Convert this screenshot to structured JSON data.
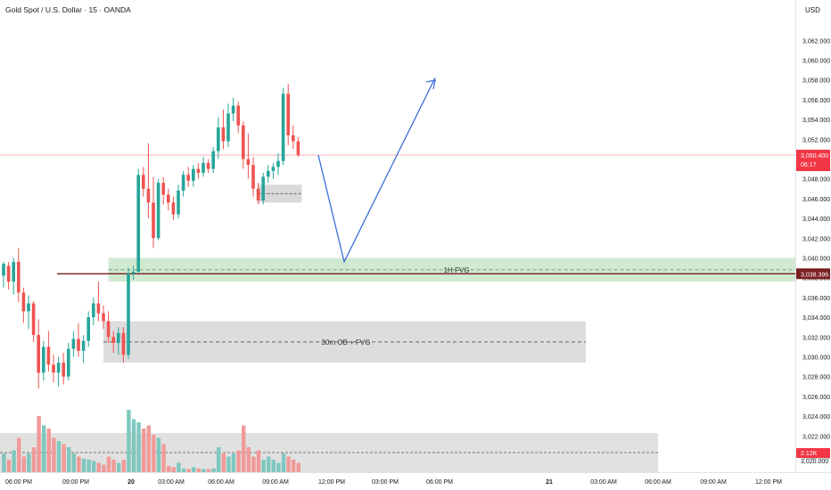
{
  "header": {
    "symbol_title": "Gold Spot / U.S. Dollar · 15 · OANDA",
    "currency": "USD"
  },
  "colors": {
    "up": "#26a69a",
    "down": "#ef5350",
    "vol_up": "#7fc7bf",
    "vol_down": "#f19a98",
    "fvg_zone": "#c8e6c9",
    "grey_zone": "#d9d9d9",
    "projection": "#3d6fd6",
    "price_tag": "#f23645",
    "level_tag": "#7a1f1f",
    "current_line": "#f7a8a8",
    "level_line": "#7a1f1f"
  },
  "price_axis": {
    "min": 3019.5,
    "max": 3065.0,
    "step": 2
  },
  "time_axis": {
    "labels": [
      "06:00 PM",
      "09:00 PM",
      "20",
      "03:00 AM",
      "06:00 AM",
      "09:00 AM",
      "12:00 PM",
      "03:00 PM",
      "06:00 PM",
      "21",
      "03:00 AM",
      "06:00 AM",
      "09:00 AM",
      "12:00 PM"
    ],
    "bold": [
      "20",
      "21"
    ]
  },
  "tags": {
    "current_price": "3,050.400",
    "countdown": "06:17",
    "level": "3,038.396",
    "volume": "2.12K",
    "last_axis": "3,020.000"
  },
  "annotations": {
    "fvg_1h": "1H FVG",
    "ob_30m": "30m OB + FVG"
  },
  "chart_data": {
    "type": "candlestick",
    "title": "Gold Spot / U.S. Dollar · 15 · OANDA",
    "ylabel": "USD",
    "ylim": [
      3019.5,
      3065.0
    ],
    "grid": false,
    "candles": [
      {
        "o": 3038.2,
        "h": 3039.6,
        "l": 3037.0,
        "c": 3039.4
      },
      {
        "o": 3039.2,
        "h": 3039.6,
        "l": 3036.8,
        "c": 3037.6
      },
      {
        "o": 3037.6,
        "h": 3040.0,
        "l": 3036.3,
        "c": 3039.6
      },
      {
        "o": 3039.6,
        "h": 3041.0,
        "l": 3035.5,
        "c": 3036.5
      },
      {
        "o": 3036.5,
        "h": 3037.0,
        "l": 3033.4,
        "c": 3034.6
      },
      {
        "o": 3034.6,
        "h": 3036.2,
        "l": 3032.8,
        "c": 3035.4
      },
      {
        "o": 3035.4,
        "h": 3035.6,
        "l": 3031.5,
        "c": 3032.2
      },
      {
        "o": 3032.2,
        "h": 3033.8,
        "l": 3026.8,
        "c": 3028.4
      },
      {
        "o": 3028.4,
        "h": 3031.6,
        "l": 3027.6,
        "c": 3031.0
      },
      {
        "o": 3031.0,
        "h": 3032.6,
        "l": 3028.5,
        "c": 3029.2
      },
      {
        "o": 3029.2,
        "h": 3030.2,
        "l": 3027.4,
        "c": 3028.4
      },
      {
        "o": 3028.4,
        "h": 3030.0,
        "l": 3027.0,
        "c": 3029.4
      },
      {
        "o": 3029.4,
        "h": 3030.4,
        "l": 3027.2,
        "c": 3028.0
      },
      {
        "o": 3028.0,
        "h": 3031.4,
        "l": 3027.6,
        "c": 3030.8
      },
      {
        "o": 3030.8,
        "h": 3032.6,
        "l": 3030.0,
        "c": 3031.8
      },
      {
        "o": 3031.8,
        "h": 3033.4,
        "l": 3030.0,
        "c": 3030.6
      },
      {
        "o": 3030.6,
        "h": 3032.2,
        "l": 3029.4,
        "c": 3031.6
      },
      {
        "o": 3031.6,
        "h": 3034.6,
        "l": 3031.0,
        "c": 3034.0
      },
      {
        "o": 3034.0,
        "h": 3036.0,
        "l": 3033.2,
        "c": 3035.4
      },
      {
        "o": 3035.4,
        "h": 3037.6,
        "l": 3033.6,
        "c": 3034.4
      },
      {
        "o": 3034.4,
        "h": 3035.2,
        "l": 3032.8,
        "c": 3033.6
      },
      {
        "o": 3033.6,
        "h": 3034.6,
        "l": 3031.4,
        "c": 3032.0
      },
      {
        "o": 3032.0,
        "h": 3032.6,
        "l": 3030.4,
        "c": 3031.4
      },
      {
        "o": 3031.4,
        "h": 3033.0,
        "l": 3030.2,
        "c": 3032.4
      },
      {
        "o": 3032.4,
        "h": 3033.0,
        "l": 3029.4,
        "c": 3030.2
      },
      {
        "o": 3030.2,
        "h": 3039.0,
        "l": 3029.8,
        "c": 3038.4
      },
      {
        "o": 3038.4,
        "h": 3039.2,
        "l": 3037.8,
        "c": 3038.6
      },
      {
        "o": 3038.6,
        "h": 3049.0,
        "l": 3038.4,
        "c": 3048.4
      },
      {
        "o": 3048.4,
        "h": 3049.2,
        "l": 3046.2,
        "c": 3047.0
      },
      {
        "o": 3047.0,
        "h": 3051.6,
        "l": 3044.0,
        "c": 3045.6
      },
      {
        "o": 3045.6,
        "h": 3048.2,
        "l": 3041.0,
        "c": 3042.0
      },
      {
        "o": 3042.0,
        "h": 3048.0,
        "l": 3041.8,
        "c": 3047.6
      },
      {
        "o": 3047.6,
        "h": 3048.2,
        "l": 3045.4,
        "c": 3046.4
      },
      {
        "o": 3046.4,
        "h": 3047.0,
        "l": 3044.8,
        "c": 3045.6
      },
      {
        "o": 3045.6,
        "h": 3046.2,
        "l": 3043.8,
        "c": 3044.4
      },
      {
        "o": 3044.4,
        "h": 3047.4,
        "l": 3044.0,
        "c": 3046.8
      },
      {
        "o": 3046.8,
        "h": 3048.8,
        "l": 3046.2,
        "c": 3048.4
      },
      {
        "o": 3048.4,
        "h": 3049.2,
        "l": 3047.2,
        "c": 3047.8
      },
      {
        "o": 3047.8,
        "h": 3049.4,
        "l": 3047.2,
        "c": 3049.0
      },
      {
        "o": 3049.0,
        "h": 3049.6,
        "l": 3048.0,
        "c": 3048.6
      },
      {
        "o": 3048.6,
        "h": 3050.2,
        "l": 3048.2,
        "c": 3049.6
      },
      {
        "o": 3049.6,
        "h": 3050.0,
        "l": 3048.6,
        "c": 3049.0
      },
      {
        "o": 3049.0,
        "h": 3051.2,
        "l": 3048.6,
        "c": 3050.8
      },
      {
        "o": 3050.8,
        "h": 3054.2,
        "l": 3050.0,
        "c": 3053.2
      },
      {
        "o": 3053.2,
        "h": 3055.0,
        "l": 3051.0,
        "c": 3051.8
      },
      {
        "o": 3051.8,
        "h": 3055.6,
        "l": 3051.2,
        "c": 3054.6
      },
      {
        "o": 3054.6,
        "h": 3056.2,
        "l": 3053.8,
        "c": 3055.4
      },
      {
        "o": 3055.4,
        "h": 3055.8,
        "l": 3052.6,
        "c": 3053.4
      },
      {
        "o": 3053.4,
        "h": 3053.8,
        "l": 3049.0,
        "c": 3050.0
      },
      {
        "o": 3050.0,
        "h": 3052.6,
        "l": 3048.0,
        "c": 3049.4
      },
      {
        "o": 3049.4,
        "h": 3050.2,
        "l": 3046.2,
        "c": 3047.0
      },
      {
        "o": 3047.0,
        "h": 3047.6,
        "l": 3045.4,
        "c": 3045.8
      },
      {
        "o": 3045.8,
        "h": 3048.6,
        "l": 3045.4,
        "c": 3048.2
      },
      {
        "o": 3048.2,
        "h": 3049.4,
        "l": 3047.6,
        "c": 3048.8
      },
      {
        "o": 3048.8,
        "h": 3049.6,
        "l": 3048.0,
        "c": 3049.2
      },
      {
        "o": 3049.2,
        "h": 3050.6,
        "l": 3048.4,
        "c": 3049.8
      },
      {
        "o": 3049.8,
        "h": 3057.2,
        "l": 3049.4,
        "c": 3056.6
      },
      {
        "o": 3056.6,
        "h": 3057.6,
        "l": 3051.4,
        "c": 3052.4
      },
      {
        "o": 3052.4,
        "h": 3053.4,
        "l": 3051.0,
        "c": 3051.8
      },
      {
        "o": 3051.8,
        "h": 3052.2,
        "l": 3050.2,
        "c": 3050.4
      }
    ],
    "volume": [
      30,
      20,
      35,
      55,
      25,
      30,
      40,
      90,
      75,
      70,
      55,
      50,
      45,
      40,
      30,
      25,
      22,
      20,
      18,
      15,
      12,
      25,
      20,
      15,
      20,
      100,
      85,
      80,
      70,
      75,
      60,
      55,
      45,
      10,
      8,
      15,
      6,
      5,
      8,
      6,
      5,
      5,
      6,
      40,
      30,
      25,
      30,
      35,
      75,
      40,
      25,
      35,
      20,
      25,
      20,
      15,
      30,
      25,
      20,
      15
    ],
    "zones": [
      {
        "label": "1H FVG",
        "top": 3040.0,
        "bottom": 3037.6
      },
      {
        "label": "30m OB + FVG",
        "top": 3033.6,
        "bottom": 3029.4
      }
    ],
    "levels": [
      3038.396,
      3050.4
    ],
    "projection": [
      3050.4,
      3039.6,
      3058.2
    ]
  }
}
